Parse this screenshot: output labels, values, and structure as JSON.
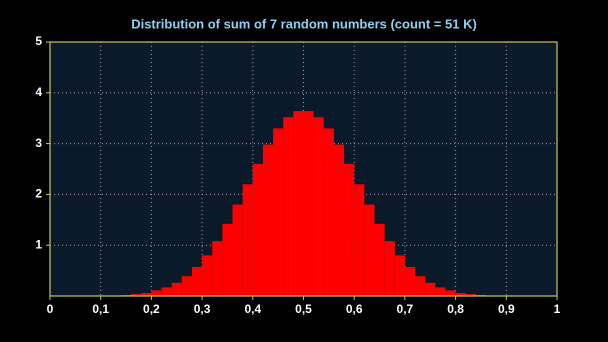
{
  "chart_data": {
    "type": "histogram",
    "title": "Distribution of sum of 7 random numbers (count = 51 K)",
    "bins": [
      0,
      0.02,
      0.04,
      0.06,
      0.08,
      0.1,
      0.12,
      0.14,
      0.16,
      0.18,
      0.2,
      0.22,
      0.24,
      0.26,
      0.28,
      0.3,
      0.32,
      0.34,
      0.36,
      0.38,
      0.4,
      0.42,
      0.44,
      0.46,
      0.48,
      0.5,
      0.52,
      0.54,
      0.56,
      0.58,
      0.6,
      0.62,
      0.64,
      0.66,
      0.68,
      0.7,
      0.72,
      0.74,
      0.76,
      0.78,
      0.8,
      0.82,
      0.84,
      0.86,
      0.88,
      0.9,
      0.92,
      0.94,
      0.96,
      0.98,
      1
    ],
    "values": [
      0,
      0,
      0,
      0,
      0,
      0.01,
      0.01,
      0.02,
      0.04,
      0.06,
      0.11,
      0.17,
      0.26,
      0.39,
      0.57,
      0.8,
      1.08,
      1.42,
      1.8,
      2.2,
      2.6,
      2.98,
      3.3,
      3.52,
      3.64,
      3.64,
      3.52,
      3.3,
      2.98,
      2.6,
      2.2,
      1.8,
      1.42,
      1.08,
      0.8,
      0.57,
      0.39,
      0.26,
      0.17,
      0.11,
      0.06,
      0.04,
      0.02,
      0.01,
      0.01,
      0,
      0,
      0,
      0,
      0
    ],
    "color": "#ff0000",
    "xlim": [
      0,
      1
    ],
    "xticks": [
      0,
      {
        "value": 0.1,
        "label": "0,1"
      },
      {
        "value": 0.2,
        "label": "0,2"
      },
      {
        "value": 0.3,
        "label": "0,3"
      },
      {
        "value": 0.4,
        "label": "0,4"
      },
      {
        "value": 0.5,
        "label": "0,5"
      },
      {
        "value": 0.6,
        "label": "0,6"
      },
      {
        "value": 0.7,
        "label": "0,7"
      },
      {
        "value": 0.8,
        "label": "0,8"
      },
      {
        "value": 0.9,
        "label": "0,9"
      },
      1
    ],
    "ylim": [
      0,
      5
    ],
    "yticks": [
      1,
      2,
      3,
      4,
      5
    ],
    "grid": true
  }
}
